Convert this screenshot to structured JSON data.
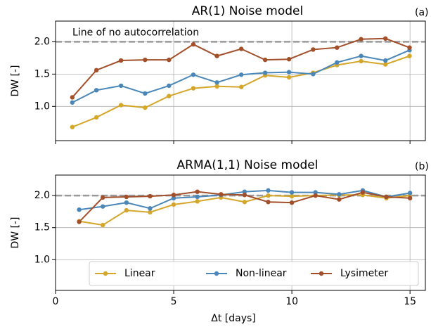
{
  "chart_data": [
    {
      "type": "line",
      "title": "AR(1) Noise model",
      "panel_label": "(a)",
      "ylabel": "DW [-]",
      "annotation": "Line of no autocorrelation",
      "reference_line": 2,
      "x": [
        0.71,
        1.73,
        2.77,
        3.79,
        4.8,
        5.83,
        6.83,
        7.86,
        8.87,
        9.88,
        10.9,
        11.91,
        12.93,
        13.96,
        14.98
      ],
      "series": [
        {
          "name": "Linear",
          "color": "#d4a62a",
          "values": [
            0.68,
            0.83,
            1.02,
            0.98,
            1.16,
            1.28,
            1.31,
            1.3,
            1.48,
            1.45,
            1.52,
            1.64,
            1.7,
            1.65,
            1.78
          ]
        },
        {
          "name": "Non-linear",
          "color": "#4a87b8",
          "values": [
            1.06,
            1.25,
            1.32,
            1.2,
            1.32,
            1.49,
            1.37,
            1.49,
            1.52,
            1.53,
            1.5,
            1.68,
            1.78,
            1.71,
            1.87
          ]
        },
        {
          "name": "Lysimeter",
          "color": "#a24f2a",
          "values": [
            1.14,
            1.56,
            1.71,
            1.72,
            1.72,
            1.96,
            1.78,
            1.89,
            1.72,
            1.73,
            1.88,
            1.91,
            2.04,
            2.05,
            1.91
          ]
        }
      ],
      "xlim": [
        0,
        15.65
      ],
      "ylim": [
        0.47,
        2.32
      ],
      "xticks": [
        0,
        5,
        10,
        15
      ],
      "yticks": [
        {
          "value": 1,
          "label": "1.0"
        },
        {
          "value": 1.5,
          "label": "1.5"
        },
        {
          "value": 2,
          "label": "2.0"
        }
      ],
      "grid": true
    },
    {
      "type": "line",
      "title": "ARMA(1,1) Noise model",
      "panel_label": "(b)",
      "ylabel": "DW [-]",
      "xlabel": "Δt [days]",
      "reference_line": 2,
      "x": [
        1,
        2,
        3,
        4,
        5,
        6,
        7,
        8,
        9,
        10,
        11,
        12,
        13,
        14,
        15
      ],
      "series": [
        {
          "name": "Linear",
          "color": "#d4a62a",
          "values": [
            1.6,
            1.54,
            1.77,
            1.74,
            1.86,
            1.91,
            1.97,
            1.9,
            2.0,
            1.99,
            2.0,
            2.01,
            2.01,
            1.96,
            2.0
          ]
        },
        {
          "name": "Non-linear",
          "color": "#4a87b8",
          "values": [
            1.78,
            1.83,
            1.89,
            1.8,
            1.96,
            1.98,
            2.01,
            2.06,
            2.08,
            2.05,
            2.05,
            2.02,
            2.08,
            1.98,
            2.04
          ]
        },
        {
          "name": "Lysimeter",
          "color": "#a24f2a",
          "values": [
            1.59,
            1.97,
            1.98,
            1.99,
            2.01,
            2.06,
            2.02,
            2.01,
            1.9,
            1.89,
            2.0,
            1.94,
            2.05,
            1.98,
            1.96
          ]
        }
      ],
      "xlim": [
        0,
        15.65
      ],
      "ylim": [
        0.52,
        2.32
      ],
      "xticks": [
        0,
        5,
        10,
        15
      ],
      "yticks": [
        {
          "value": 1,
          "label": "1.0"
        },
        {
          "value": 1.5,
          "label": "1.5"
        },
        {
          "value": 2,
          "label": "2.0"
        }
      ],
      "grid": true,
      "legend": "lower-right"
    }
  ]
}
